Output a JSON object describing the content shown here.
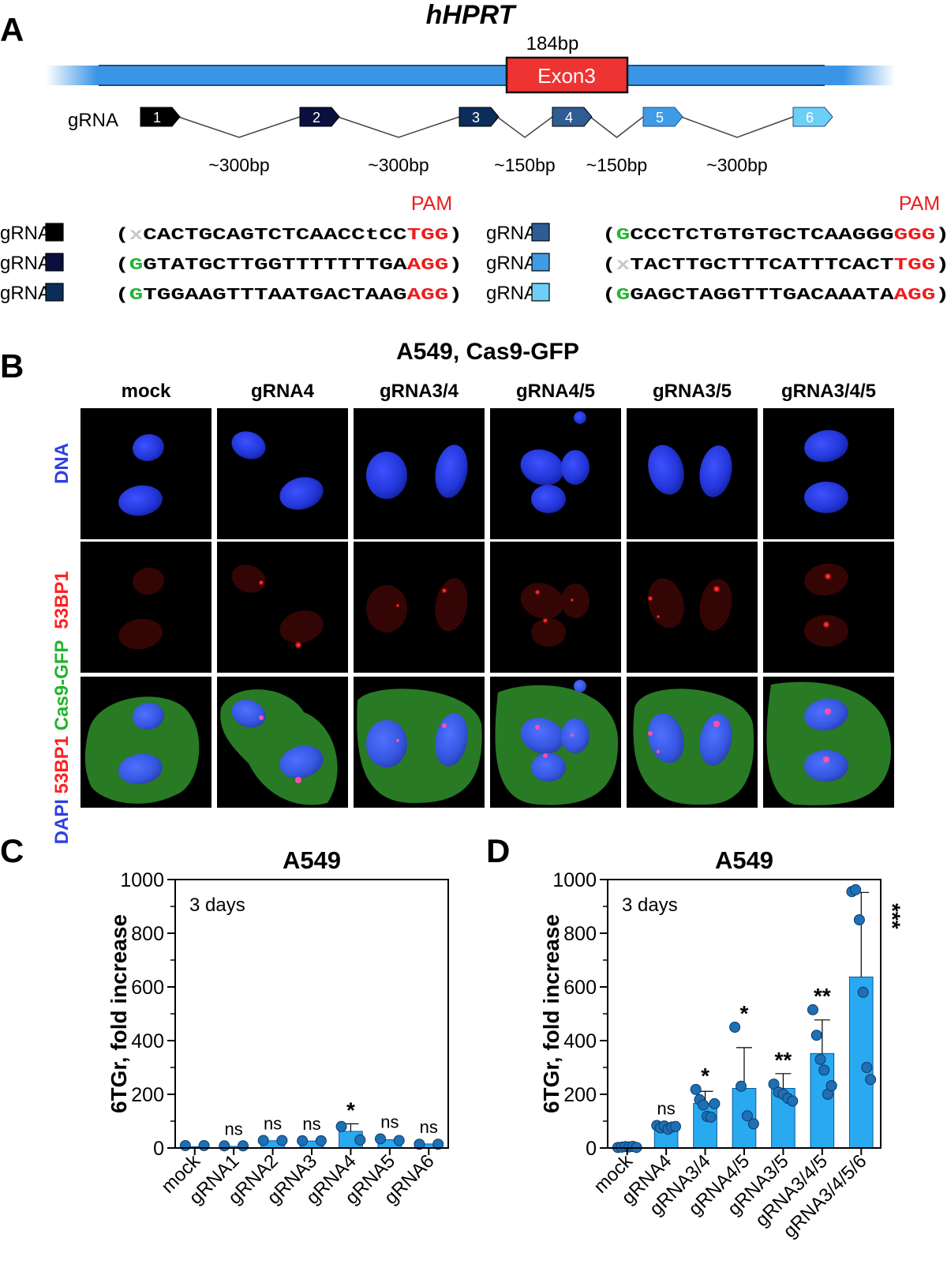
{
  "panels": {
    "A": "A",
    "B": "B",
    "C": "C",
    "D": "D"
  },
  "panel_a": {
    "title": "hHPRT",
    "exon_size": "184bp",
    "exon_label": "Exon3",
    "grna_row_label": "gRNA",
    "grna_numbers": [
      "1",
      "2",
      "3",
      "4",
      "5",
      "6"
    ],
    "grna_colors": [
      "#000000",
      "#0b0f3d",
      "#0c2d5a",
      "#2f5d93",
      "#3f9be6",
      "#6ecff6"
    ],
    "spacings": [
      "~300bp",
      "~300bp",
      "~150bp",
      "~150bp",
      "~300bp"
    ],
    "pam_label": "PAM",
    "sequences": [
      {
        "name": "gRNA1",
        "prefix": "x",
        "prefix_type": "x",
        "body": "CACTGCAGTCTCAACCtCC",
        "pam": "TGG"
      },
      {
        "name": "gRNA2",
        "prefix": "G",
        "prefix_type": "G",
        "body": "GTATGCTTGGTTTTTTTGA",
        "pam": "AGG"
      },
      {
        "name": "gRNA3",
        "prefix": "G",
        "prefix_type": "G",
        "body": "TGGAAGTTTAATGACTAAG",
        "pam": "AGG"
      },
      {
        "name": "gRNA4",
        "prefix": "G",
        "prefix_type": "G",
        "body": "CCCTCTGTGTGCTCAAGGG",
        "pam": "GGG"
      },
      {
        "name": "gRNA5",
        "prefix": "x",
        "prefix_type": "x",
        "body": "TACTTGCTTTCATTTCACT",
        "pam": "TGG"
      },
      {
        "name": "gRNA6",
        "prefix": "G",
        "prefix_type": "G",
        "body": "GAGCTAGGTTTGACAAATA",
        "pam": "AGG"
      }
    ]
  },
  "panel_b": {
    "title": "A549, Cas9-GFP",
    "columns": [
      "mock",
      "gRNA4",
      "gRNA3/4",
      "gRNA4/5",
      "gRNA3/5",
      "gRNA3/4/5"
    ],
    "row_dna": "DNA",
    "row_53bp1": "53BP1",
    "row_merge": [
      "DAPI",
      "53BP1",
      "Cas9-GFP"
    ]
  },
  "colors": {
    "dna_blue": "#2f3fe0",
    "focus_red": "#ff2020",
    "gfp_green": "#21b42b",
    "bar_blue": "#29a9f0",
    "dot_blue": "#1f6fb5",
    "exon_red": "#ee3333",
    "locus_blue": "#3b95e6",
    "pam_red": "#ee1c1c",
    "g_green": "#22b531"
  },
  "chart_data": [
    {
      "type": "bar",
      "title": "A549",
      "annotation": "3 days",
      "ylabel": "6TGr, fold increase",
      "ylim": [
        0,
        1000
      ],
      "yticks": [
        0,
        200,
        400,
        600,
        800,
        1000
      ],
      "categories": [
        "mock",
        "gRNA1",
        "gRNA2",
        "gRNA3",
        "gRNA4",
        "gRNA5",
        "gRNA6"
      ],
      "values": [
        5,
        6,
        27,
        26,
        62,
        31,
        15
      ],
      "error": [
        null,
        null,
        null,
        null,
        28,
        null,
        null
      ],
      "significance": [
        "",
        "ns",
        "ns",
        "ns",
        "*",
        "ns",
        "ns"
      ],
      "points": [
        [
          9,
          9
        ],
        [
          8,
          8
        ],
        [
          28,
          28
        ],
        [
          27,
          27
        ],
        [
          80,
          30
        ],
        [
          34,
          28
        ],
        [
          14,
          14
        ]
      ]
    },
    {
      "type": "bar",
      "title": "A549",
      "annotation": "3 days",
      "ylabel": "6TGr, fold increase",
      "ylim": [
        0,
        1000
      ],
      "yticks": [
        0,
        200,
        400,
        600,
        800,
        1000
      ],
      "categories": [
        "mock",
        "gRNA4",
        "gRNA3/4",
        "gRNA4/5",
        "gRNA3/5",
        "gRNA3/4/5",
        "gRNA3/4/5/6"
      ],
      "values": [
        3,
        79,
        166,
        222,
        222,
        352,
        637
      ],
      "error": [
        null,
        null,
        45,
        152,
        55,
        125,
        315
      ],
      "significance": [
        "",
        "ns",
        "*",
        "*",
        "**",
        "**",
        "***"
      ],
      "points": [
        [
          2,
          3,
          5,
          4,
          6,
          2
        ],
        [
          84,
          75,
          82,
          70,
          78,
          80
        ],
        [
          218,
          180,
          160,
          118,
          115,
          165
        ],
        [
          450,
          230,
          120,
          90
        ],
        [
          238,
          208,
          200,
          185,
          175
        ],
        [
          515,
          420,
          330,
          290,
          200,
          232
        ],
        [
          955,
          962,
          850,
          580,
          300,
          255
        ]
      ]
    }
  ]
}
